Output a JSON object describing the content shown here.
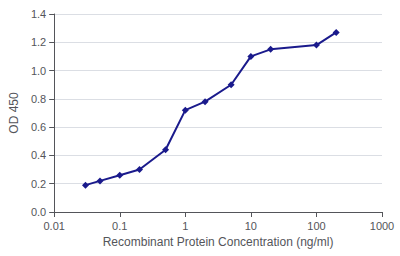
{
  "chart_data": {
    "type": "line",
    "xlabel": "Recombinant Protein Concentration (ng/ml)",
    "ylabel": "OD 450",
    "x": [
      0.03,
      0.05,
      0.1,
      0.2,
      0.5,
      1.0,
      2.0,
      5.0,
      10.0,
      20.0,
      100.0,
      200.0
    ],
    "values": [
      0.19,
      0.22,
      0.26,
      0.3,
      0.44,
      0.72,
      0.78,
      0.9,
      1.1,
      1.15,
      1.18,
      1.27
    ],
    "log": "x",
    "xlim": [
      0.01,
      1000
    ],
    "xticks": [
      0.01,
      0.1,
      1,
      10,
      100,
      1000
    ],
    "ylim": [
      0.0,
      1.4
    ],
    "yticks": [
      {
        "value": 0.0,
        "label": "0.0"
      },
      0.2,
      0.4,
      0.6,
      0.8,
      {
        "value": 1.0,
        "label": "1.0"
      },
      1.2,
      1.4
    ],
    "color": "#1a1a8c",
    "marker": "diamond",
    "grid": true
  }
}
